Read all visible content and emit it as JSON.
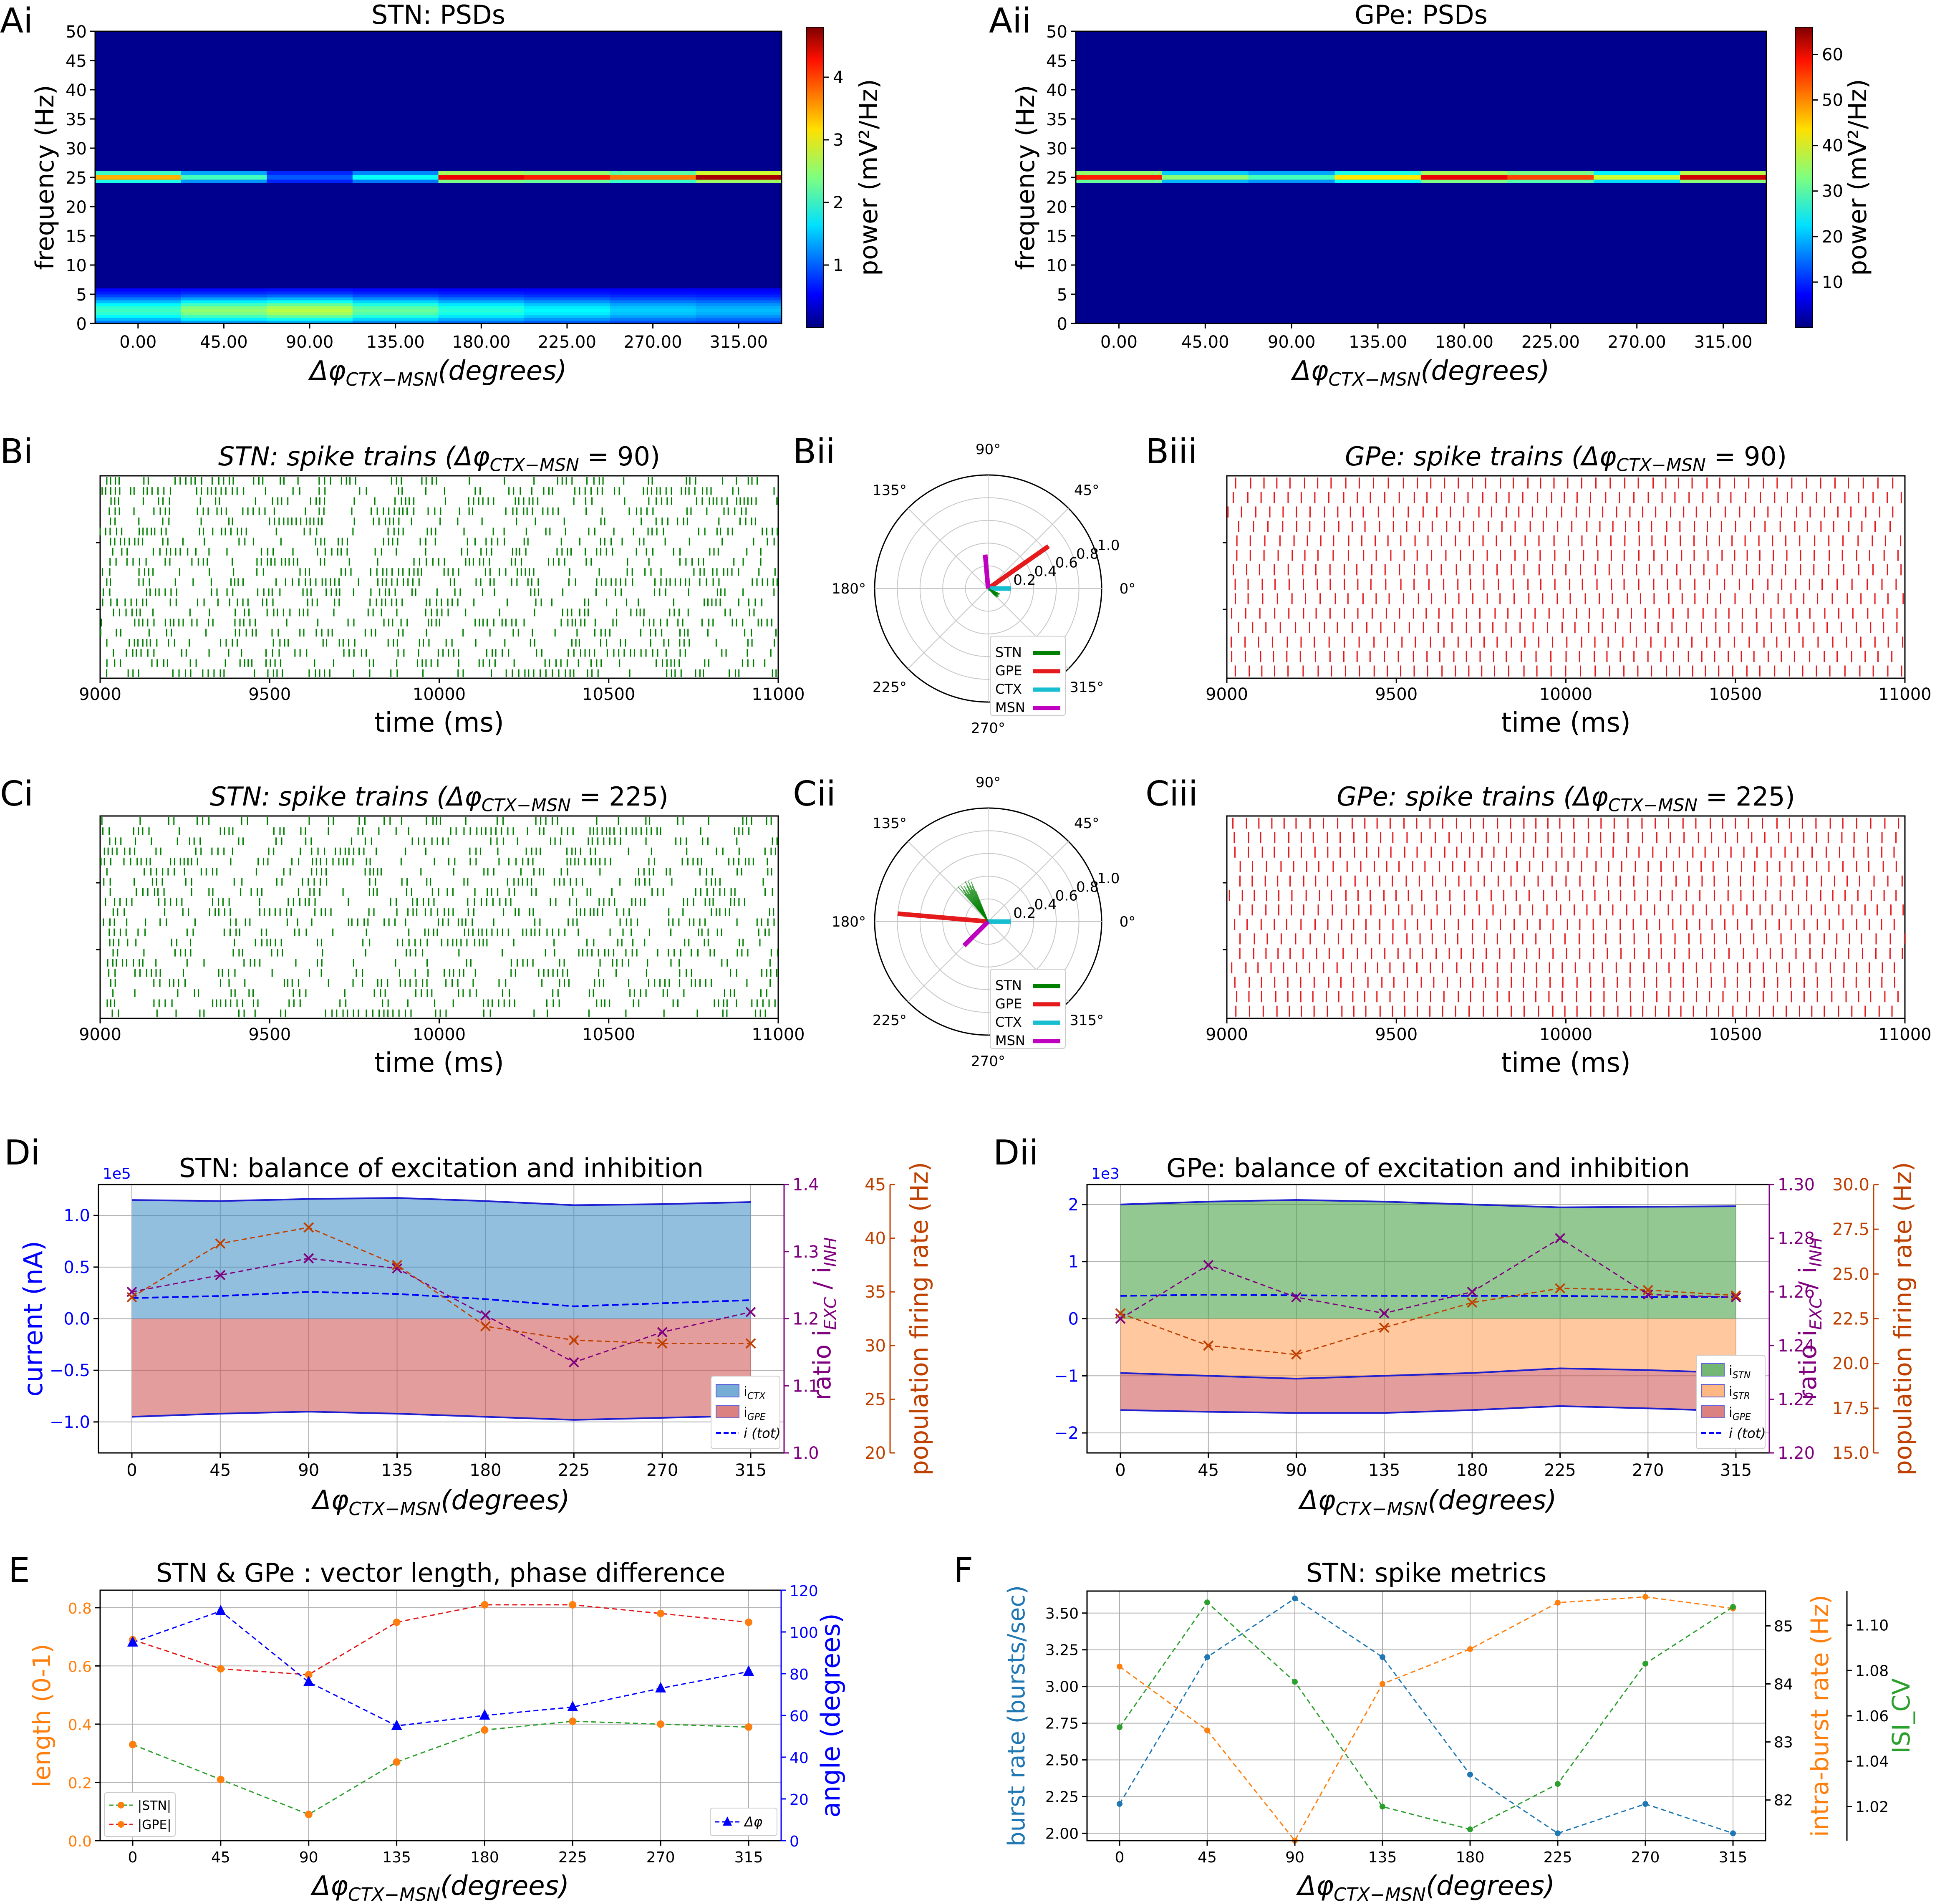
{
  "panel_labels": {
    "Ai": "Ai",
    "Aii": "Aii",
    "Bi": "Bi",
    "Bii": "Bii",
    "Biii": "Biii",
    "Ci": "Ci",
    "Cii": "Cii",
    "Ciii": "Ciii",
    "Di": "Di",
    "Dii": "Dii",
    "E": "E",
    "F": "F"
  },
  "colors": {
    "stn": "#008000",
    "gpe": "#e41a1c",
    "ctx": "#17becf",
    "msn": "#bf00bf",
    "blue": "#0000ff",
    "orange": "#ff7f0e",
    "purple": "#800080",
    "brown": "#c04000"
  },
  "chart_data": [
    {
      "id": "Ai",
      "type": "heatmap",
      "title": "STN: PSDs",
      "xlabel": "Δφ_CTX−MSN(degrees)",
      "ylabel": "frequency (Hz)",
      "categories": [
        "0.00",
        "45.00",
        "90.00",
        "135.00",
        "180.00",
        "225.00",
        "270.00",
        "315.00"
      ],
      "yticks": [
        0,
        5,
        10,
        15,
        20,
        25,
        30,
        35,
        40,
        45,
        50
      ],
      "ylim": [
        0,
        50
      ],
      "colorbar": {
        "label": "power (mV²/Hz)",
        "ticks": [
          1,
          2,
          3,
          4
        ],
        "range": [
          0,
          4.8
        ]
      },
      "peak_power_25hz": [
        3.2,
        1.8,
        0.6,
        1.5,
        4.2,
        4.0,
        3.5,
        4.6
      ],
      "low_freq_power": [
        1.6,
        2.0,
        2.2,
        1.8,
        1.5,
        1.3,
        1.1,
        1.0
      ]
    },
    {
      "id": "Aii",
      "type": "heatmap",
      "title": "GPe: PSDs",
      "xlabel": "Δφ_CTX−MSN(degrees)",
      "ylabel": "frequency (Hz)",
      "categories": [
        "0.00",
        "45.00",
        "90.00",
        "135.00",
        "180.00",
        "225.00",
        "270.00",
        "315.00"
      ],
      "yticks": [
        0,
        5,
        10,
        15,
        20,
        25,
        30,
        35,
        40,
        45,
        50
      ],
      "ylim": [
        0,
        50
      ],
      "colorbar": {
        "label": "power (mV²/Hz)",
        "ticks": [
          10,
          20,
          30,
          40,
          50,
          60
        ],
        "range": [
          0,
          66
        ]
      },
      "peak_power_25hz": [
        55,
        30,
        25,
        40,
        58,
        52,
        35,
        60
      ]
    },
    {
      "id": "Bi",
      "type": "scatter",
      "title": "STN: spike trains (Δφ_CTX−MSN = 90)",
      "xlabel": "time (ms)",
      "xticks": [
        "9000",
        "9500",
        "10000",
        "10500",
        "11000"
      ],
      "xlim": [
        9000,
        11000
      ],
      "rows": 20
    },
    {
      "id": "Bii",
      "type": "scatter",
      "polar": true,
      "angle_labels": [
        "90°",
        "45°",
        "0°",
        "315°",
        "270°",
        "225°",
        "180°",
        "135°"
      ],
      "radial_labels": [
        "0.2",
        "0.4",
        "0.6",
        "0.8",
        "1.0"
      ],
      "vectors": [
        {
          "name": "GPE",
          "angle": 35,
          "length": 0.65
        },
        {
          "name": "CTX",
          "angle": 0,
          "length": 0.2
        },
        {
          "name": "MSN",
          "angle": 95,
          "length": 0.3
        },
        {
          "name": "STN",
          "angle": -35,
          "length": 0.12
        }
      ],
      "legend": [
        "STN",
        "GPE",
        "CTX",
        "MSN"
      ]
    },
    {
      "id": "Biii",
      "type": "scatter",
      "title": "GPe: spike trains (Δφ_CTX−MSN = 90)",
      "xlabel": "time (ms)",
      "xticks": [
        "9000",
        "9500",
        "10000",
        "10500",
        "11000"
      ],
      "xlim": [
        9000,
        11000
      ],
      "rows": 14
    },
    {
      "id": "Ci",
      "type": "scatter",
      "title": "STN: spike trains (Δφ_CTX−MSN = 225)",
      "xlabel": "time (ms)",
      "xticks": [
        "9000",
        "9500",
        "10000",
        "10500",
        "11000"
      ],
      "xlim": [
        9000,
        11000
      ],
      "rows": 20
    },
    {
      "id": "Cii",
      "type": "scatter",
      "polar": true,
      "angle_labels": [
        "90°",
        "45°",
        "0°",
        "315°",
        "270°",
        "225°",
        "180°",
        "135°"
      ],
      "radial_labels": [
        "0.2",
        "0.4",
        "0.6",
        "0.8",
        "1.0"
      ],
      "vectors": [
        {
          "name": "GPE",
          "angle": 175,
          "length": 0.8
        },
        {
          "name": "CTX",
          "angle": 0,
          "length": 0.2
        },
        {
          "name": "MSN",
          "angle": 225,
          "length": 0.3
        },
        {
          "name": "STN",
          "angle": 122,
          "length": 0.42
        }
      ],
      "legend": [
        "STN",
        "GPE",
        "CTX",
        "MSN"
      ]
    },
    {
      "id": "Ciii",
      "type": "scatter",
      "title": "GPe: spike trains (Δφ_CTX−MSN = 225)",
      "xlabel": "time (ms)",
      "xticks": [
        "9000",
        "9500",
        "10000",
        "10500",
        "11000"
      ],
      "xlim": [
        9000,
        11000
      ],
      "rows": 14
    },
    {
      "id": "Di",
      "type": "area",
      "title": "STN: balance of excitation and inhibition",
      "x": [
        0,
        45,
        90,
        135,
        180,
        225,
        270,
        315
      ],
      "xlabel": "Δφ_CTX−MSN(degrees)",
      "ylabel": "current (nA)",
      "ylabel_ratio": "ratio i_EXC / i_INH",
      "ylabel_rate": "population firing rate (Hz)",
      "y_exponent": "1e5",
      "yticks": [
        "1.0",
        "0.5",
        "0.0",
        "−0.5",
        "−1.0"
      ],
      "ylim": [
        -1.3,
        1.3
      ],
      "ratio_ticks": [
        "1.4",
        "1.3",
        "1.2",
        "1.1",
        "1.0"
      ],
      "ratio_lim": [
        1.0,
        1.4
      ],
      "rate_ticks": [
        "45",
        "40",
        "35",
        "30",
        "25",
        "20"
      ],
      "rate_lim": [
        20,
        45
      ],
      "series": [
        {
          "name": "i_CTX",
          "values": [
            1.15,
            1.14,
            1.16,
            1.17,
            1.14,
            1.1,
            1.11,
            1.13
          ]
        },
        {
          "name": "i_GPE",
          "values": [
            -0.95,
            -0.92,
            -0.9,
            -0.92,
            -0.95,
            -0.98,
            -0.96,
            -0.94
          ]
        },
        {
          "name": "i (tot)",
          "values": [
            0.2,
            0.22,
            0.26,
            0.24,
            0.19,
            0.12,
            0.15,
            0.18
          ]
        },
        {
          "name": "ratio",
          "values": [
            1.24,
            1.265,
            1.29,
            1.275,
            1.205,
            1.135,
            1.18,
            1.21
          ]
        },
        {
          "name": "rate",
          "values": [
            34.5,
            39.5,
            41,
            37.5,
            31.8,
            30.5,
            30.2,
            30.2
          ]
        }
      ],
      "legend": [
        "i_CTX",
        "i_GPE",
        "i (tot)"
      ]
    },
    {
      "id": "Dii",
      "type": "area",
      "title": "GPe: balance of excitation and inhibition",
      "x": [
        0,
        45,
        90,
        135,
        180,
        225,
        270,
        315
      ],
      "xlabel": "Δφ_CTX−MSN(degrees)",
      "ylabel_ratio": "ratio i_EXC / i_INH",
      "ylabel_rate": "population firing rate (Hz)",
      "y_exponent": "1e3",
      "yticks": [
        "2",
        "1",
        "0",
        "−1",
        "−2"
      ],
      "ylim": [
        -2.35,
        2.35
      ],
      "ratio_ticks": [
        "1.30",
        "1.28",
        "1.26",
        "1.24",
        "1.22",
        "1.20"
      ],
      "ratio_lim": [
        1.2,
        1.3
      ],
      "rate_ticks": [
        "30.0",
        "27.5",
        "25.0",
        "22.5",
        "20.0",
        "17.5",
        "15.0"
      ],
      "rate_lim": [
        15,
        30
      ],
      "series": [
        {
          "name": "i_STN",
          "values": [
            2.0,
            2.05,
            2.08,
            2.05,
            2.0,
            1.95,
            1.96,
            1.97
          ]
        },
        {
          "name": "i_STR",
          "values": [
            -0.95,
            -1.0,
            -1.05,
            -1.0,
            -0.95,
            -0.87,
            -0.9,
            -0.95
          ]
        },
        {
          "name": "i_GPE",
          "values": [
            -1.6,
            -1.63,
            -1.65,
            -1.65,
            -1.6,
            -1.53,
            -1.57,
            -1.62
          ]
        },
        {
          "name": "i (tot)",
          "values": [
            0.4,
            0.42,
            0.41,
            0.4,
            0.4,
            0.4,
            0.38,
            0.38
          ]
        },
        {
          "name": "ratio",
          "values": [
            1.25,
            1.27,
            1.258,
            1.252,
            1.26,
            1.28,
            1.259,
            1.258
          ]
        },
        {
          "name": "rate",
          "values": [
            22.8,
            21,
            20.5,
            22,
            23.4,
            24.2,
            24.1,
            23.8
          ]
        }
      ],
      "legend": [
        "i_STN",
        "i_STR",
        "i_GPE",
        "i (tot)"
      ]
    },
    {
      "id": "E",
      "type": "line",
      "title": "STN & GPe : vector length, phase difference",
      "x": [
        0,
        45,
        90,
        135,
        180,
        225,
        270,
        315
      ],
      "xlabel": "Δφ_CTX−MSN(degrees)",
      "ylabel": "length (0-1)",
      "ylabel_right": "angle (degrees)",
      "yticks": [
        "0.0",
        "0.2",
        "0.4",
        "0.6",
        "0.8"
      ],
      "ylim": [
        0,
        0.86
      ],
      "right_ticks": [
        "0",
        "20",
        "40",
        "60",
        "80",
        "100",
        "120"
      ],
      "right_lim": [
        0,
        120
      ],
      "series": [
        {
          "name": "|STN|",
          "values": [
            0.33,
            0.21,
            0.09,
            0.27,
            0.38,
            0.41,
            0.4,
            0.39
          ]
        },
        {
          "name": "|GPE|",
          "values": [
            0.69,
            0.59,
            0.57,
            0.75,
            0.81,
            0.81,
            0.78,
            0.75
          ]
        },
        {
          "name": "Δφ",
          "values": [
            95,
            110,
            76,
            55,
            60,
            64,
            73,
            81
          ]
        }
      ],
      "legend": [
        "|STN|",
        "|GPE|",
        "Δφ"
      ]
    },
    {
      "id": "F",
      "type": "line",
      "title": "STN: spike metrics",
      "x": [
        0,
        45,
        90,
        135,
        180,
        225,
        270,
        315
      ],
      "xlabel": "Δφ_CTX−MSN(degrees)",
      "ylabel": "burst rate (bursts/sec)",
      "ylabel_right": "intra-burst rate (Hz)",
      "ylabel_right2": "ISI_CV",
      "yticks": [
        "2.00",
        "2.25",
        "2.50",
        "2.75",
        "3.00",
        "3.25",
        "3.50"
      ],
      "ylim": [
        1.95,
        3.65
      ],
      "right_ticks": [
        "82",
        "83",
        "84",
        "85"
      ],
      "right_lim": [
        81.3,
        85.6
      ],
      "right2_ticks": [
        "1.02",
        "1.04",
        "1.06",
        "1.08",
        "1.10"
      ],
      "right2_lim": [
        1.005,
        1.115
      ],
      "series": [
        {
          "name": "burst rate",
          "values": [
            2.2,
            3.2,
            3.6,
            3.2,
            2.4,
            2.0,
            2.2,
            2.0
          ]
        },
        {
          "name": "intra-burst rate",
          "values": [
            84.3,
            83.2,
            81.3,
            84.0,
            84.6,
            85.4,
            85.5,
            85.3
          ]
        },
        {
          "name": "ISI_CV",
          "values": [
            1.055,
            1.11,
            1.075,
            1.02,
            1.01,
            1.03,
            1.083,
            1.108
          ]
        }
      ]
    }
  ]
}
